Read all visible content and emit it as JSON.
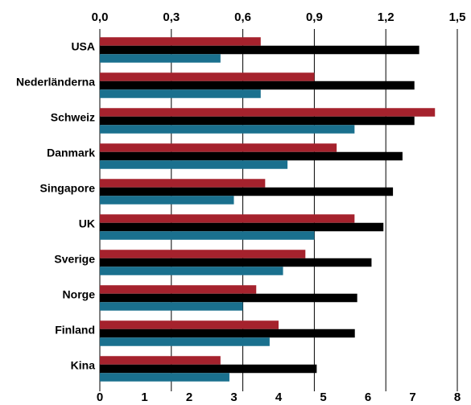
{
  "chart_data": {
    "type": "bar",
    "orientation": "horizontal",
    "categories": [
      "USA",
      "Nederländerna",
      "Schweiz",
      "Danmark",
      "Singapore",
      "UK",
      "Sverige",
      "Norge",
      "Finland",
      "Kina"
    ],
    "top_axis": {
      "ticks": [
        "0,0",
        "0,3",
        "0,6",
        "0,9",
        "1,2",
        "1,5"
      ],
      "range": [
        0,
        1.5
      ]
    },
    "bottom_axis": {
      "ticks": [
        "0",
        "1",
        "2",
        "3",
        "4",
        "5",
        "6",
        "7",
        "8"
      ],
      "range": [
        0,
        8
      ]
    },
    "grid": "vertical",
    "series": [
      {
        "color": "#a5222d",
        "axis": "bottom",
        "values": [
          3.6,
          4.8,
          7.5,
          5.3,
          3.7,
          5.7,
          4.6,
          3.5,
          4.0,
          2.7
        ]
      },
      {
        "color": "#000000",
        "axis": "top",
        "values": [
          1.34,
          1.32,
          1.32,
          1.27,
          1.23,
          1.19,
          1.14,
          1.08,
          1.07,
          0.91
        ]
      },
      {
        "color": "#1a708e",
        "axis": "bottom",
        "values": [
          2.7,
          3.6,
          5.7,
          4.2,
          3.0,
          4.8,
          4.1,
          3.2,
          3.8,
          2.9
        ]
      }
    ]
  }
}
